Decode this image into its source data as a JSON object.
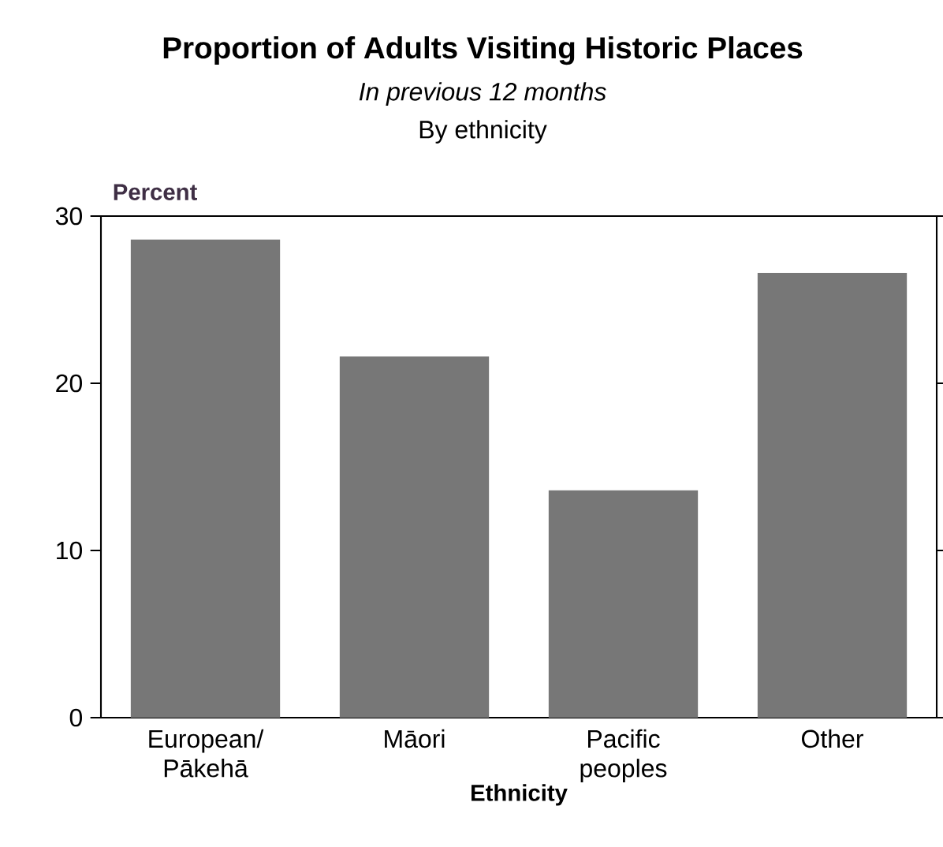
{
  "chart_data": {
    "type": "bar",
    "title": "Proportion of Adults Visiting Historic Places",
    "subtitle": "In previous 12 months",
    "annotations": [
      "By ethnicity"
    ],
    "xlabel": "Ethnicity",
    "ylabel": "Percent",
    "categories": [
      "European/ Pākehā",
      "Māori",
      "Pacific peoples",
      "Other"
    ],
    "values": [
      28.6,
      21.6,
      13.6,
      26.6
    ],
    "color": "#777777",
    "ylim": [
      0,
      30
    ],
    "yticks": [
      0,
      10,
      20,
      30
    ]
  }
}
